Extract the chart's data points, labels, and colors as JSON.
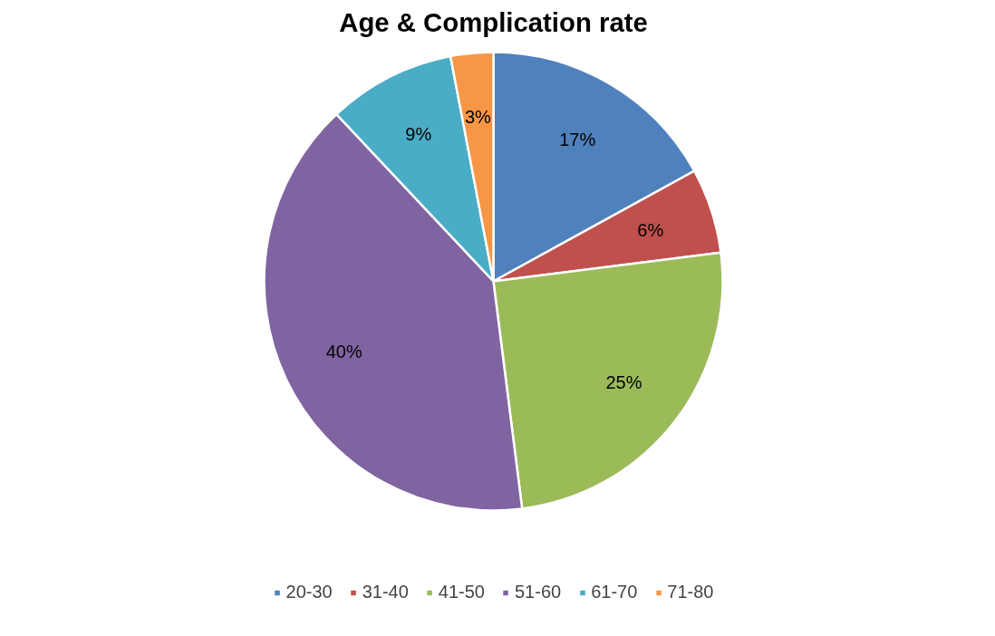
{
  "chart_data": {
    "type": "pie",
    "title": "Age & Complication rate",
    "categories": [
      "20-30",
      "31-40",
      "41-50",
      "51-60",
      "61-70",
      "71-80"
    ],
    "values": [
      17,
      6,
      25,
      40,
      9,
      3
    ],
    "colors": [
      "#4f81bd",
      "#c0504d",
      "#9bbb59",
      "#8064a2",
      "#4bacc6",
      "#f79646"
    ],
    "value_labels": [
      "17%",
      "6%",
      "25%",
      "40%",
      "9%",
      "3%"
    ],
    "legend": "bottom"
  }
}
